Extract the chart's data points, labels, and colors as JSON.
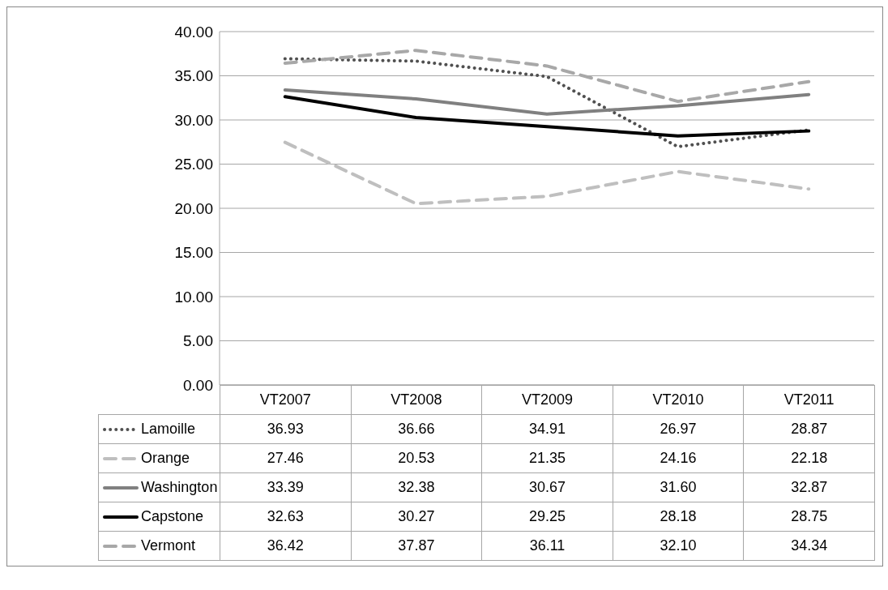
{
  "chart_data": {
    "type": "line",
    "categories": [
      "VT2007",
      "VT2008",
      "VT2009",
      "VT2010",
      "VT2011"
    ],
    "series": [
      {
        "name": "Lamoille",
        "color": "#505050",
        "line_style": "dotted",
        "values": [
          36.93,
          36.66,
          34.91,
          26.97,
          28.87
        ],
        "value_labels": [
          "36.93",
          "36.66",
          "34.91",
          "26.97",
          "28.87"
        ]
      },
      {
        "name": "Orange",
        "color": "#bfbfbf",
        "line_style": "dashed",
        "values": [
          27.46,
          20.53,
          21.35,
          24.16,
          22.18
        ],
        "value_labels": [
          "27.46",
          "20.53",
          "21.35",
          "24.16",
          "22.18"
        ]
      },
      {
        "name": "Washington",
        "color": "#808080",
        "line_style": "solid",
        "values": [
          33.39,
          32.38,
          30.67,
          31.6,
          32.87
        ],
        "value_labels": [
          "33.39",
          "32.38",
          "30.67",
          "31.60",
          "32.87"
        ]
      },
      {
        "name": "Capstone",
        "color": "#000000",
        "line_style": "solid",
        "values": [
          32.63,
          30.27,
          29.25,
          28.18,
          28.75
        ],
        "value_labels": [
          "32.63",
          "30.27",
          "29.25",
          "28.18",
          "28.75"
        ]
      },
      {
        "name": "Vermont",
        "color": "#a8a8a8",
        "line_style": "dashed",
        "values": [
          36.42,
          37.87,
          36.11,
          32.1,
          34.34
        ],
        "value_labels": [
          "36.42",
          "37.87",
          "36.11",
          "32.10",
          "34.34"
        ]
      }
    ],
    "ylim": [
      0,
      40
    ],
    "yticks": [
      {
        "value": 0,
        "label": "0.00"
      },
      {
        "value": 5,
        "label": "5.00"
      },
      {
        "value": 10,
        "label": "10.00"
      },
      {
        "value": 15,
        "label": "15.00"
      },
      {
        "value": 20,
        "label": "20.00"
      },
      {
        "value": 25,
        "label": "25.00"
      },
      {
        "value": 30,
        "label": "30.00"
      },
      {
        "value": 35,
        "label": "35.00"
      },
      {
        "value": 40,
        "label": "40.00"
      }
    ],
    "grid": "y",
    "legend": "bottom",
    "marker": "none"
  }
}
